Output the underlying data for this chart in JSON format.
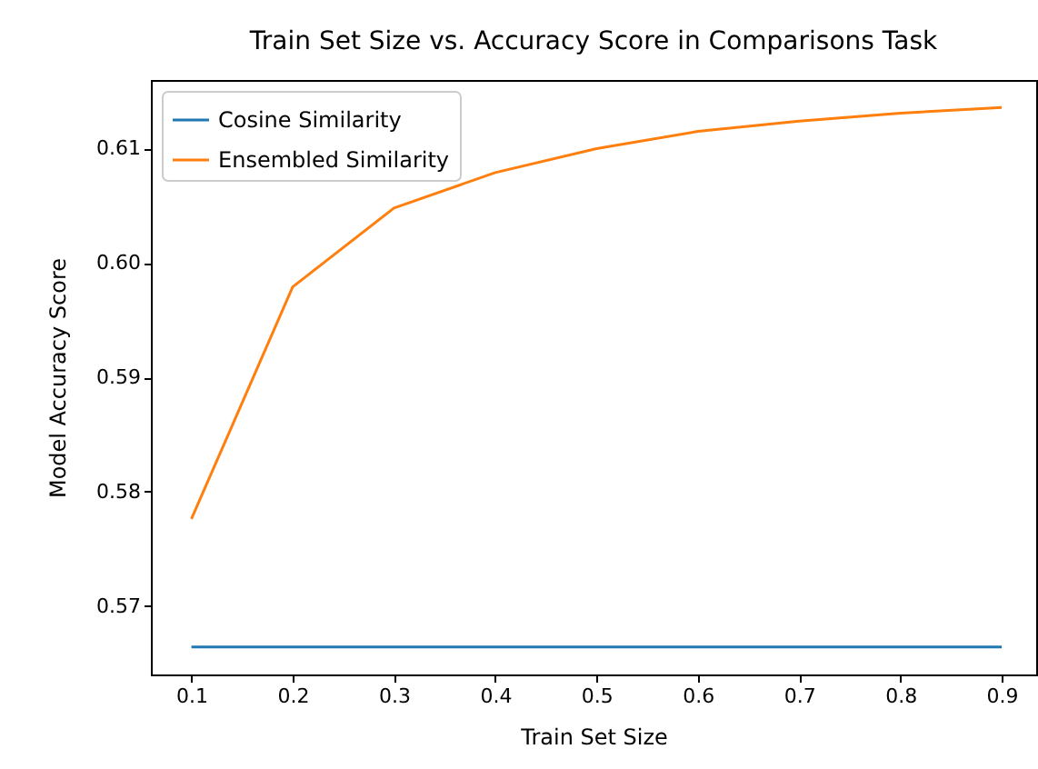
{
  "chart_data": {
    "type": "line",
    "title": "Train Set Size vs. Accuracy Score in Comparisons Task",
    "xlabel": "Train Set Size",
    "ylabel": "Model Accuracy Score",
    "x": [
      0.1,
      0.2,
      0.3,
      0.4,
      0.5,
      0.6,
      0.7,
      0.8,
      0.9
    ],
    "series": [
      {
        "name": "Cosine Similarity",
        "color": "#1f77b4",
        "values": [
          0.5664,
          0.5664,
          0.5664,
          0.5664,
          0.5664,
          0.5664,
          0.5664,
          0.5664,
          0.5664
        ]
      },
      {
        "name": "Ensembled Similarity",
        "color": "#ff7f0e",
        "values": [
          0.5776,
          0.5979,
          0.6048,
          0.6079,
          0.61,
          0.6115,
          0.6124,
          0.6131,
          0.6136
        ]
      }
    ],
    "xlim": [
      0.06,
      0.934
    ],
    "xticks": [
      0.1,
      0.2,
      0.3,
      0.4,
      0.5,
      0.6,
      0.7,
      0.8,
      0.9
    ],
    "ylim": [
      0.564,
      0.616
    ],
    "yticks": [
      0.57,
      0.58,
      0.59,
      {
        "value": 0.6,
        "label": "0.60"
      },
      0.61
    ],
    "grid": false,
    "legend": "top left",
    "marker": "none",
    "line_style": "solid"
  }
}
